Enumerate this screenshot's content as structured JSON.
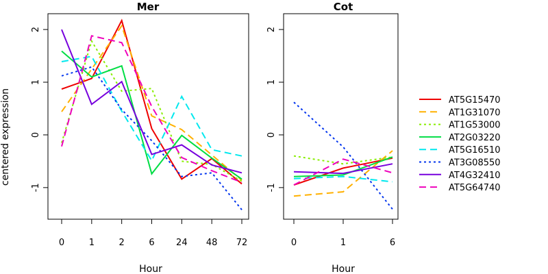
{
  "chart_data": {
    "type": "line",
    "ylabel": "centered expression",
    "xlabel": "Hour",
    "ylim": [
      -1.6,
      2.3
    ],
    "yticks": [
      -1,
      0,
      1,
      2
    ],
    "grid": false,
    "legend_position": "right",
    "series_styles": [
      {
        "name": "AT5G15470",
        "color": "#ee0000",
        "dash": "solid"
      },
      {
        "name": "AT1G31070",
        "color": "#ffb000",
        "dash": "dashed"
      },
      {
        "name": "AT1G53000",
        "color": "#88ee00",
        "dash": "dotted"
      },
      {
        "name": "AT2G03220",
        "color": "#00dd44",
        "dash": "solid"
      },
      {
        "name": "AT5G16510",
        "color": "#00e8ee",
        "dash": "dashed"
      },
      {
        "name": "AT3G08550",
        "color": "#0033ee",
        "dash": "dotted"
      },
      {
        "name": "AT4G32410",
        "color": "#7700dd",
        "dash": "solid"
      },
      {
        "name": "AT5G64740",
        "color": "#ee00bb",
        "dash": "dashed"
      }
    ],
    "panels": [
      {
        "title": "Mer",
        "categories": [
          "0",
          "1",
          "2",
          "6",
          "24",
          "48",
          "72"
        ],
        "series": [
          {
            "name": "AT5G15470",
            "values": [
              0.87,
              1.07,
              2.17,
              0.12,
              -0.84,
              -0.45,
              -0.93
            ]
          },
          {
            "name": "AT1G31070",
            "values": [
              0.44,
              1.25,
              2.07,
              0.36,
              0.1,
              -0.38,
              -0.86
            ]
          },
          {
            "name": "AT1G53000",
            "values": [
              -0.15,
              1.78,
              0.83,
              0.88,
              -0.5,
              -0.56,
              -0.88
            ]
          },
          {
            "name": "AT2G03220",
            "values": [
              1.59,
              1.1,
              1.31,
              -0.74,
              -0.01,
              -0.44,
              -0.84
            ]
          },
          {
            "name": "AT5G16510",
            "values": [
              1.39,
              1.49,
              0.45,
              -0.49,
              0.73,
              -0.28,
              -0.4
            ]
          },
          {
            "name": "AT3G08550",
            "values": [
              1.12,
              1.29,
              0.48,
              -0.11,
              -0.79,
              -0.72,
              -1.42
            ]
          },
          {
            "name": "AT4G32410",
            "values": [
              2.0,
              0.58,
              1.01,
              -0.37,
              -0.19,
              -0.57,
              -0.72
            ]
          },
          {
            "name": "AT5G64740",
            "values": [
              -0.22,
              1.88,
              1.75,
              0.54,
              -0.43,
              -0.68,
              -0.9
            ]
          }
        ]
      },
      {
        "title": "Cot",
        "categories": [
          "0",
          "1",
          "6"
        ],
        "series": [
          {
            "name": "AT5G15470",
            "values": [
              -0.95,
              -0.63,
              -0.44
            ]
          },
          {
            "name": "AT1G31070",
            "values": [
              -1.16,
              -1.08,
              -0.3
            ]
          },
          {
            "name": "AT1G53000",
            "values": [
              -0.4,
              -0.55,
              -0.42
            ]
          },
          {
            "name": "AT2G03220",
            "values": [
              -0.79,
              -0.76,
              -0.42
            ]
          },
          {
            "name": "AT5G16510",
            "values": [
              -0.83,
              -0.79,
              -0.89
            ]
          },
          {
            "name": "AT3G08550",
            "values": [
              0.62,
              -0.23,
              -1.41
            ]
          },
          {
            "name": "AT4G32410",
            "values": [
              -0.7,
              -0.73,
              -0.55
            ]
          },
          {
            "name": "AT5G64740",
            "values": [
              -0.95,
              -0.46,
              -0.72
            ]
          }
        ]
      }
    ]
  }
}
